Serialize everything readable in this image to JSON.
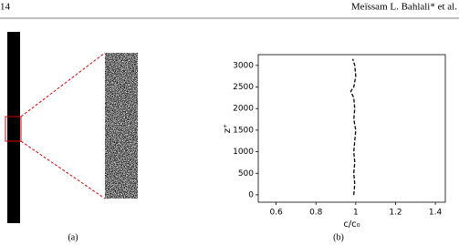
{
  "header": {
    "page_number": "14",
    "authors": "Meïssam L. Bahlali* et al."
  },
  "figure": {
    "captions": [
      "(a)",
      "(b)"
    ]
  },
  "chart_data": {
    "type": "line",
    "xlabel": "c/c₀",
    "ylabel": "z⁺",
    "xlim": [
      0.51,
      1.45
    ],
    "xticks": [
      0.6,
      0.8,
      1.0,
      1.2,
      1.4
    ],
    "ylim": [
      -170,
      3250
    ],
    "yticks": [
      0,
      500,
      1000,
      1500,
      2000,
      2500,
      3000
    ],
    "series": [
      {
        "color": "#000000",
        "x": [
          0.99,
          0.995,
          0.99,
          0.995,
          0.99,
          0.995,
          1.0,
          0.99,
          0.995,
          0.99,
          0.975,
          0.99,
          1.0,
          0.995,
          0.985
        ],
        "y": [
          0,
          250,
          500,
          750,
          1000,
          1250,
          1500,
          1750,
          2000,
          2250,
          2400,
          2500,
          2750,
          3000,
          3150
        ]
      }
    ]
  }
}
